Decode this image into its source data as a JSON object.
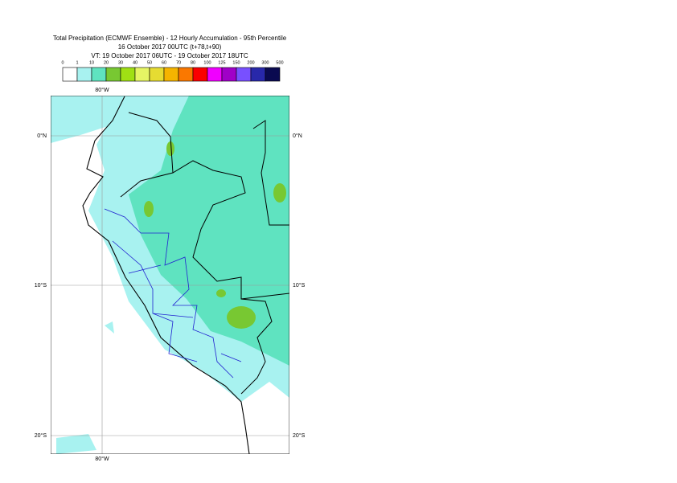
{
  "title_lines": [
    "Total Precipitation (ECMWF Ensemble) - 12 Hourly Accumulation - 95th Percentile",
    "16 October 2017 00UTC (t+78,t+90)",
    "VT: 19 October 2017 06UTC - 19 October 2017 18UTC"
  ],
  "legend": {
    "labels": [
      0,
      1,
      10,
      20,
      30,
      40,
      50,
      60,
      70,
      80,
      100,
      125,
      150,
      200,
      300,
      500
    ],
    "colors": [
      "#ffffff",
      "#a8f2f0",
      "#5fe3c0",
      "#78c832",
      "#a0e014",
      "#e6f564",
      "#e6dc32",
      "#f5b400",
      "#fa7800",
      "#fa0000",
      "#f000ff",
      "#a000c8",
      "#7850ff",
      "#2828aa",
      "#0a0a50"
    ]
  },
  "grid_labels": {
    "lon": [
      "80°W"
    ],
    "lat": [
      "0°N",
      "10°S",
      "20°S"
    ]
  }
}
